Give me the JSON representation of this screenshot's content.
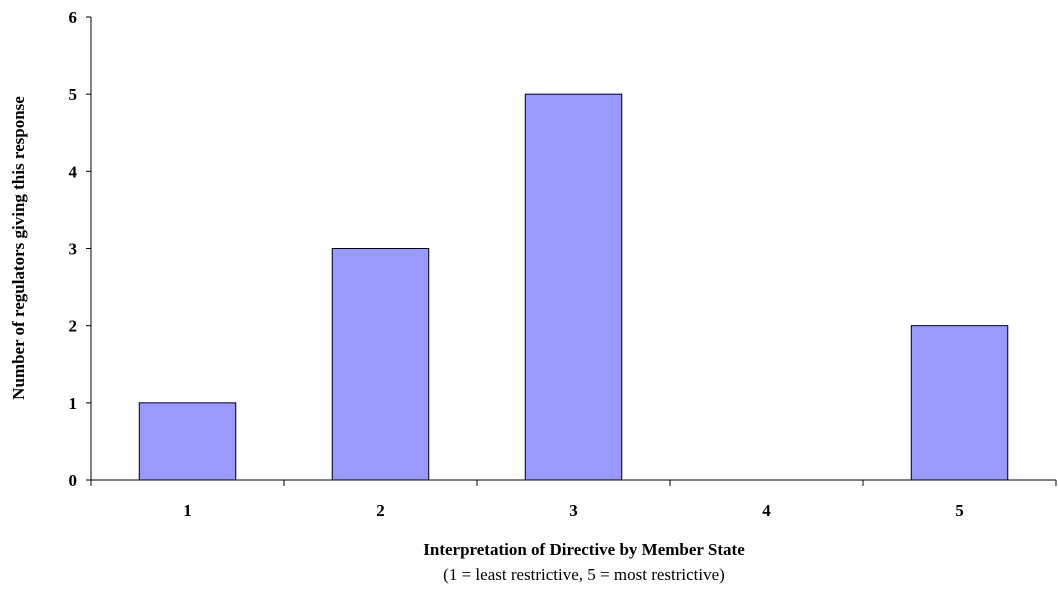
{
  "chart_data": {
    "type": "bar",
    "categories": [
      "1",
      "2",
      "3",
      "4",
      "5"
    ],
    "values": [
      1,
      3,
      5,
      0,
      2
    ],
    "xlabel": "Interpretation of Directive by Member State",
    "xlabel_note": "(1 = least restrictive, 5 = most restrictive)",
    "ylabel": "Number of regulators giving this response",
    "ylim": [
      0,
      6
    ],
    "yticks": [
      "0",
      "1",
      "2",
      "3",
      "4",
      "5",
      "6"
    ],
    "grid": false,
    "legend": "none",
    "bar_color": "#9999ff",
    "bar_edge_color": "#000000"
  }
}
